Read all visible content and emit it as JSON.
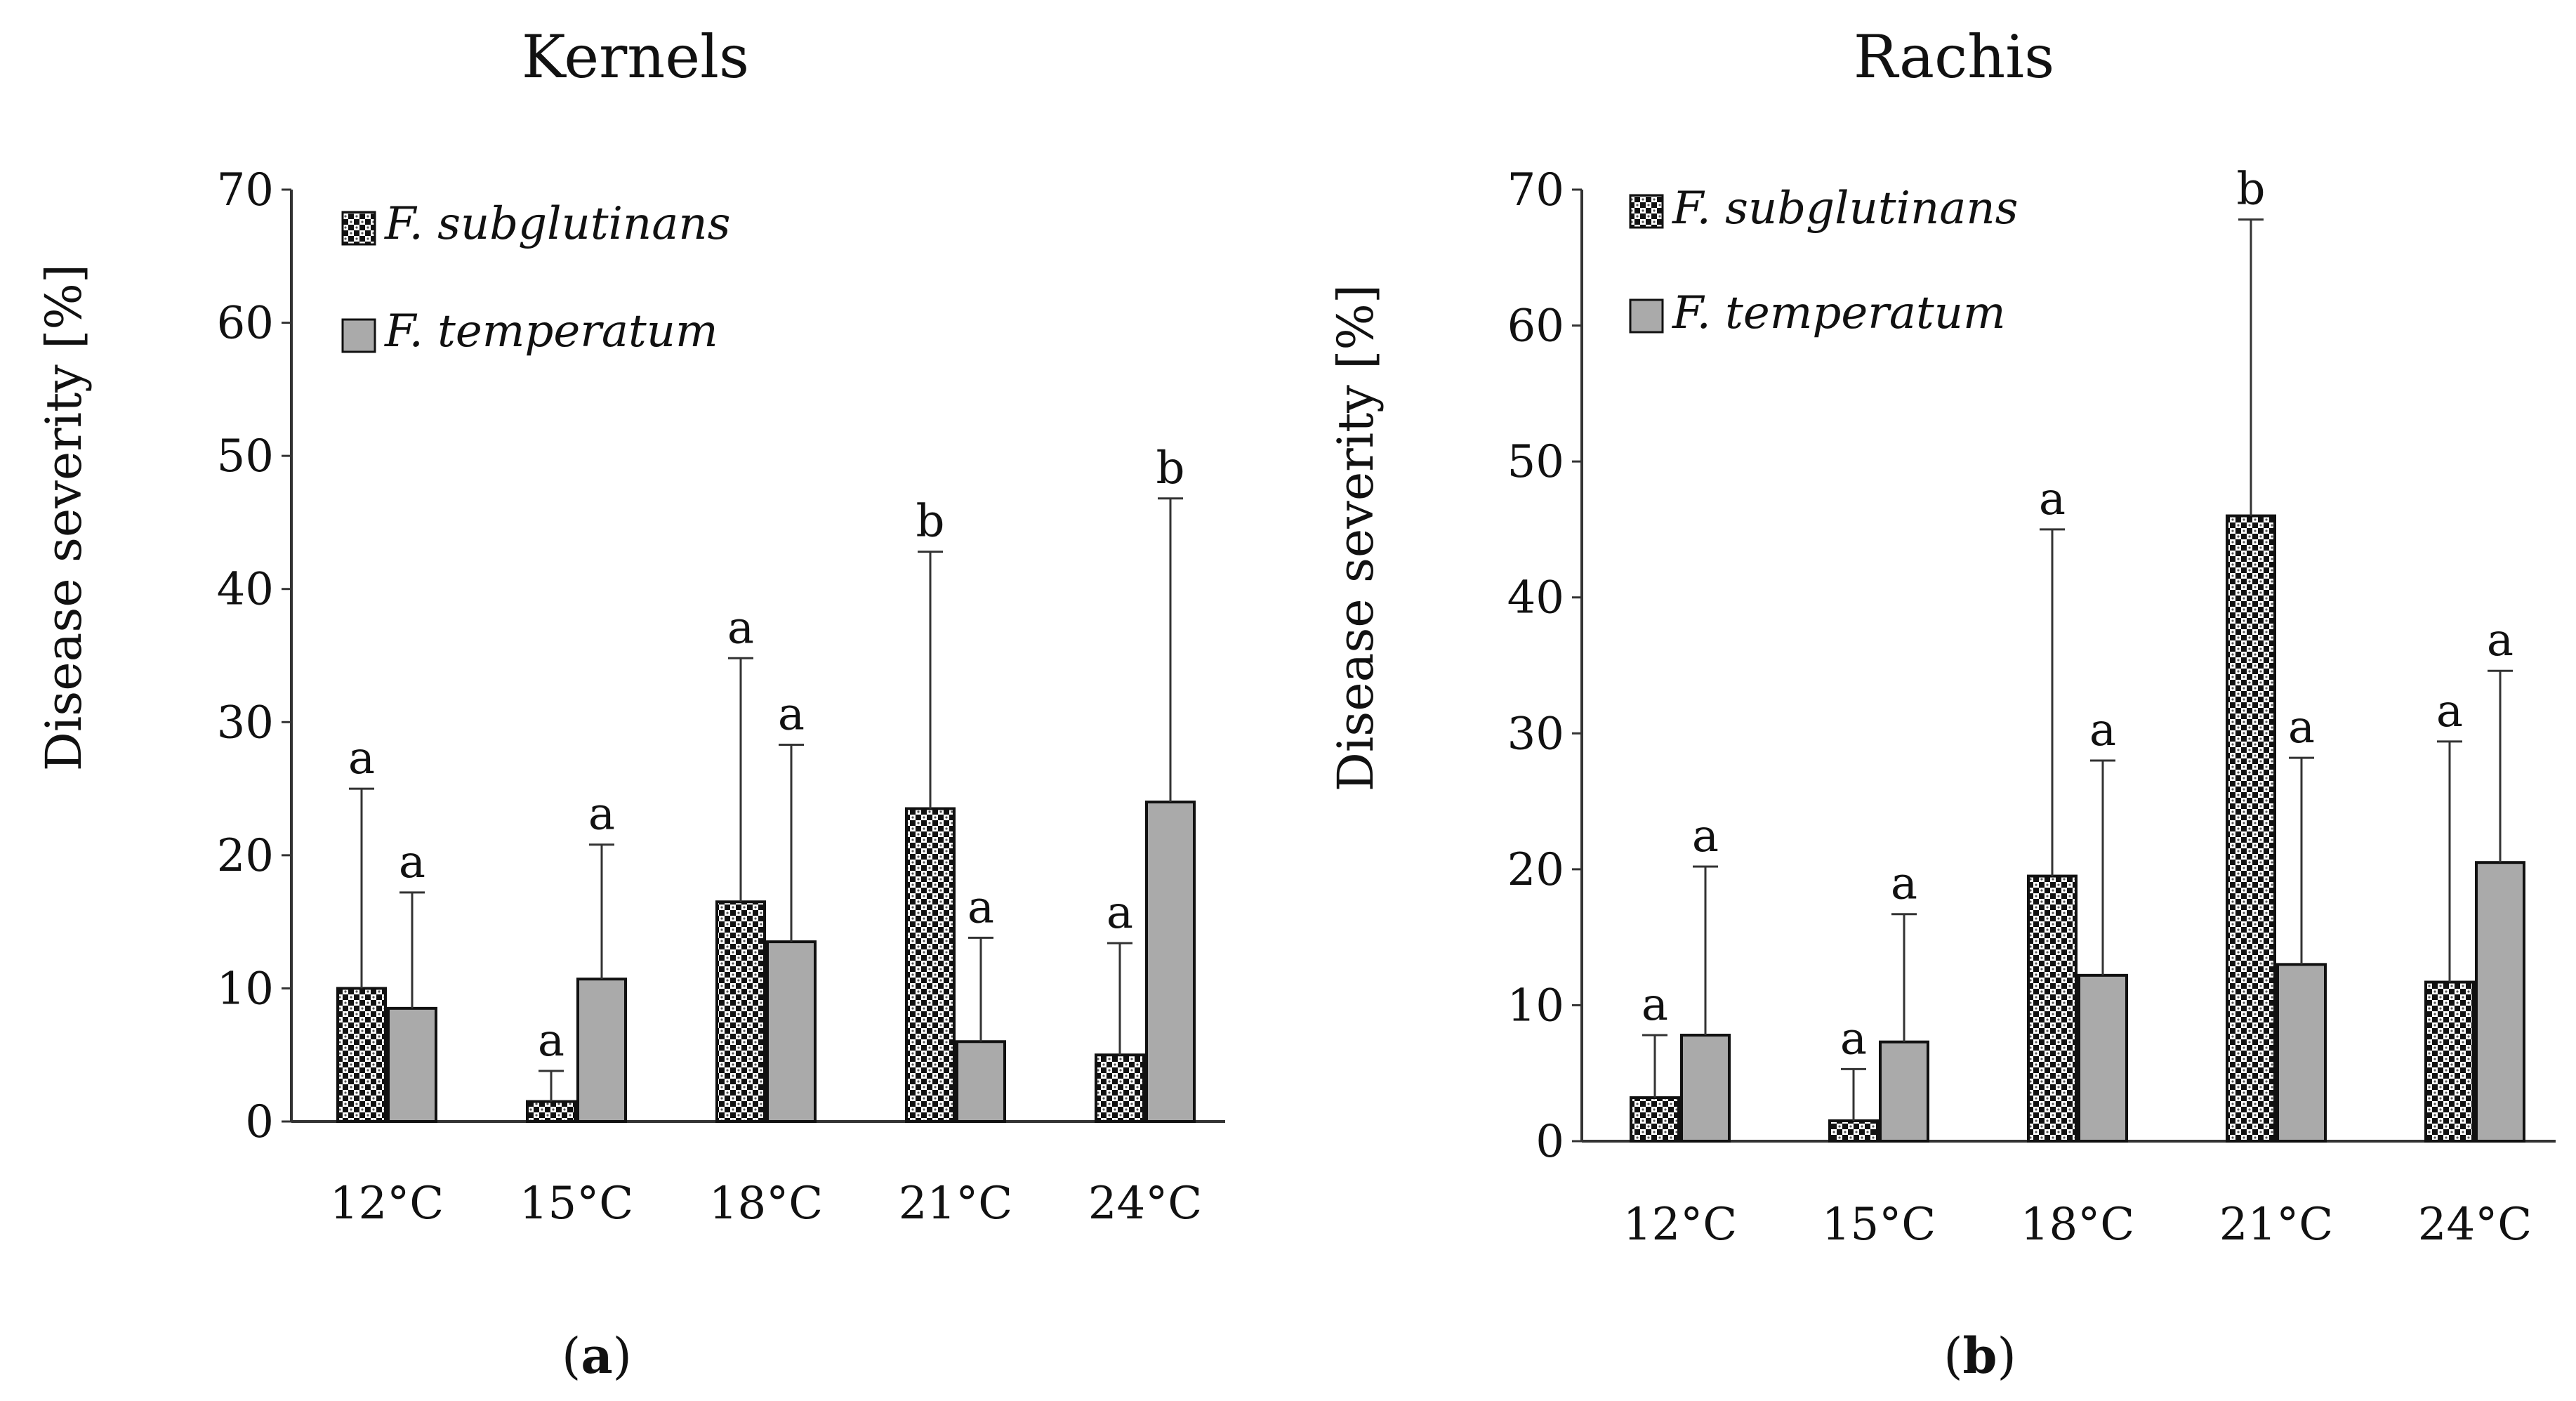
{
  "chart_data": [
    {
      "panel_label": "a",
      "type": "bar",
      "title": "Kernels",
      "xlabel": "",
      "ylabel": "Disease severity [%]",
      "ylim": [
        0,
        70
      ],
      "y_ticks": [
        "0",
        "10",
        "20",
        "30",
        "40",
        "50",
        "60",
        "70"
      ],
      "legend_position": "top-left",
      "categories": [
        "12°C",
        "15°C",
        "18°C",
        "21°C",
        "24°C"
      ],
      "series": [
        {
          "name": "F. subglutinans",
          "pattern": "checkered",
          "values": [
            10.0,
            1.5,
            16.5,
            23.5,
            5.0
          ],
          "error_upper": [
            25.0,
            3.8,
            34.8,
            42.8,
            13.4
          ],
          "letters": [
            "a",
            "a",
            "a",
            "b",
            "a"
          ]
        },
        {
          "name": "F. temperatum",
          "pattern": "gray",
          "values": [
            8.5,
            10.7,
            13.5,
            6.0,
            24.0
          ],
          "error_upper": [
            17.2,
            20.8,
            28.3,
            13.8,
            46.8
          ],
          "letters": [
            "a",
            "a",
            "a",
            "a",
            "b"
          ]
        }
      ]
    },
    {
      "panel_label": "b",
      "type": "bar",
      "title": "Rachis",
      "xlabel": "",
      "ylabel": "Disease severity [%]",
      "ylim": [
        0,
        70
      ],
      "y_ticks": [
        "0",
        "10",
        "20",
        "30",
        "40",
        "50",
        "60",
        "70"
      ],
      "legend_position": "top-left",
      "categories": [
        "12°C",
        "15°C",
        "18°C",
        "21°C",
        "24°C"
      ],
      "series": [
        {
          "name": "F. subglutinans",
          "pattern": "checkered",
          "values": [
            3.2,
            1.5,
            19.5,
            46.0,
            11.7
          ],
          "error_upper": [
            7.8,
            5.3,
            45.0,
            67.8,
            29.4
          ],
          "letters": [
            "a",
            "a",
            "a",
            "b",
            "a"
          ]
        },
        {
          "name": "F. temperatum",
          "pattern": "gray",
          "values": [
            7.8,
            7.3,
            12.2,
            13.0,
            20.5
          ],
          "error_upper": [
            20.2,
            16.7,
            28.0,
            28.2,
            34.6
          ],
          "letters": [
            "a",
            "a",
            "a",
            "a",
            "a"
          ]
        }
      ]
    }
  ]
}
